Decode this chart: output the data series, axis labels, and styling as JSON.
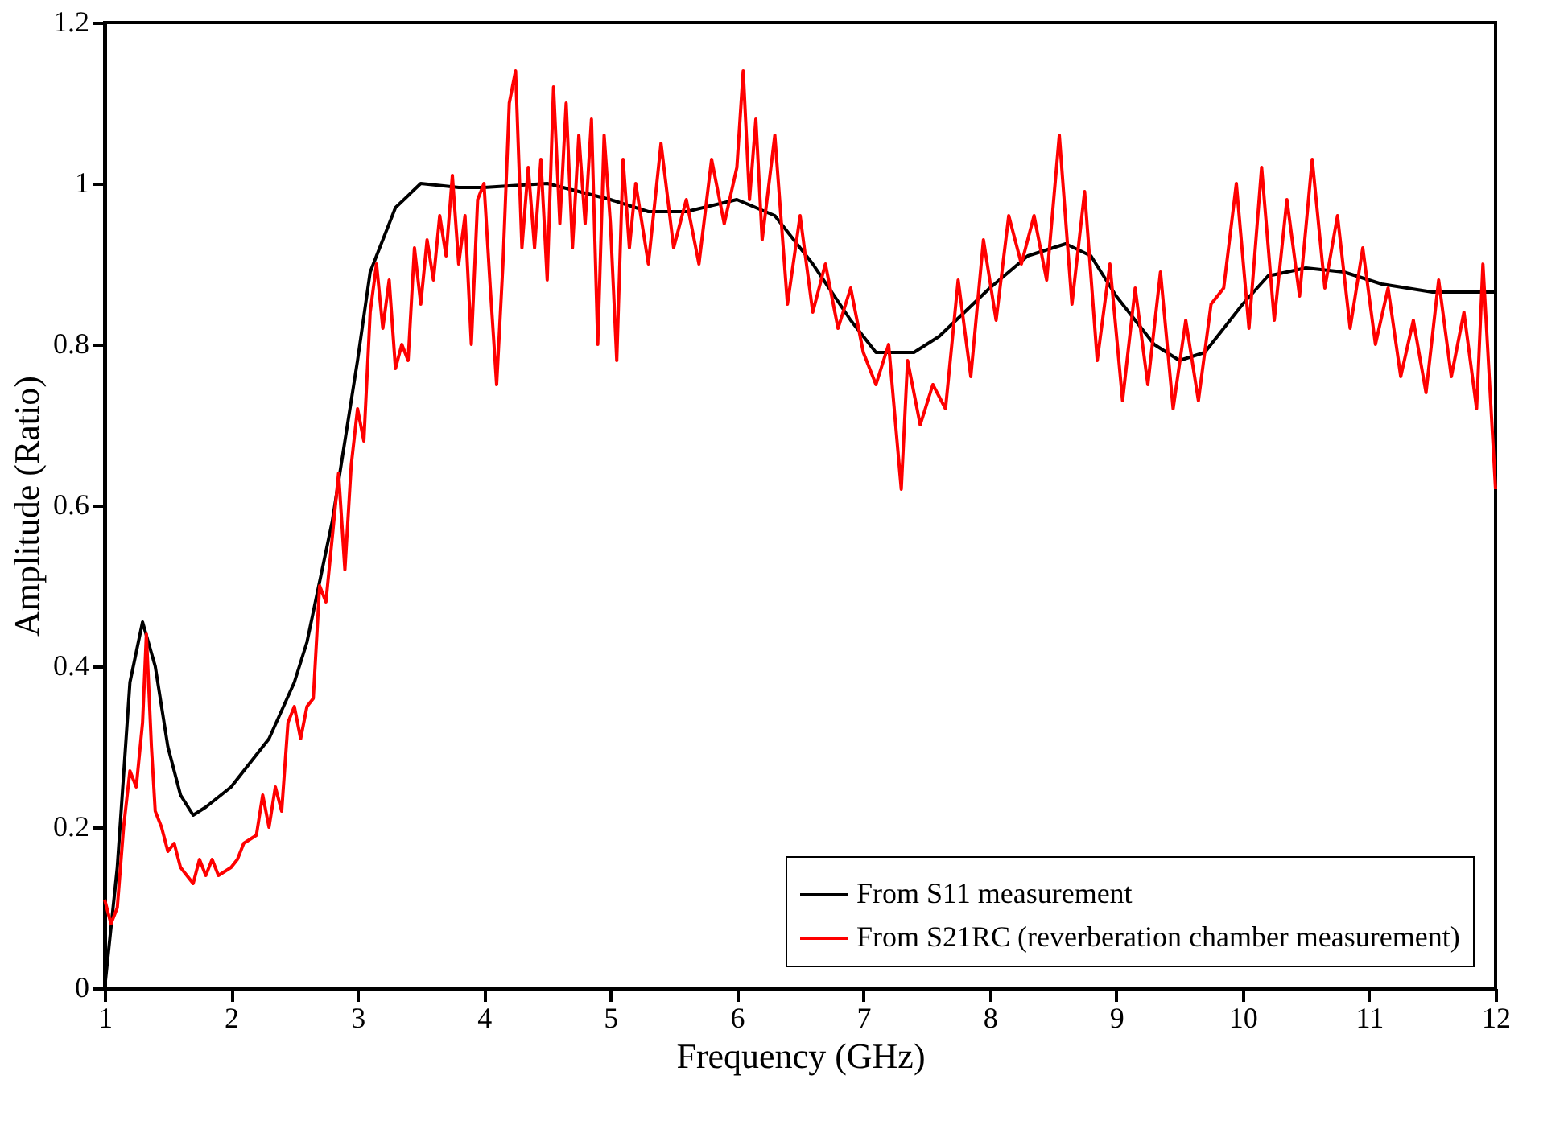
{
  "chart_data": {
    "type": "line",
    "xlabel": "Frequency (GHz)",
    "ylabel": "Amplitude (Ratio)",
    "xlim": [
      1,
      12
    ],
    "xticks": [
      1,
      2,
      3,
      4,
      5,
      6,
      7,
      8,
      9,
      10,
      11,
      12
    ],
    "ylim": [
      0,
      1.2
    ],
    "yticks": [
      0,
      0.2,
      0.4,
      0.6,
      0.8,
      1,
      1.2
    ],
    "grid": false,
    "legend": "bottom right",
    "marker": "none",
    "line_style": "solid",
    "series": [
      {
        "name": "From S11 measurement",
        "color": "#000000",
        "x": [
          1,
          1.1,
          1.2,
          1.3,
          1.4,
          1.5,
          1.6,
          1.7,
          1.8,
          2.0,
          2.2,
          2.3,
          2.5,
          2.6,
          2.8,
          3.0,
          3.1,
          3.3,
          3.5,
          3.8,
          4.0,
          4.5,
          5.0,
          5.3,
          5.6,
          6.0,
          6.3,
          6.6,
          6.9,
          7.1,
          7.4,
          7.6,
          8.0,
          8.3,
          8.6,
          8.8,
          9.0,
          9.3,
          9.5,
          9.7,
          10.0,
          10.2,
          10.5,
          10.8,
          11.1,
          11.5,
          12
        ],
        "values": [
          0,
          0.15,
          0.38,
          0.455,
          0.4,
          0.3,
          0.24,
          0.215,
          0.225,
          0.25,
          0.29,
          0.31,
          0.38,
          0.43,
          0.58,
          0.78,
          0.89,
          0.97,
          1.0,
          0.995,
          0.995,
          1.0,
          0.98,
          0.965,
          0.965,
          0.98,
          0.96,
          0.9,
          0.83,
          0.79,
          0.79,
          0.81,
          0.87,
          0.91,
          0.925,
          0.91,
          0.86,
          0.8,
          0.78,
          0.79,
          0.85,
          0.885,
          0.895,
          0.89,
          0.875,
          0.865,
          0.865
        ]
      },
      {
        "name": "From S21RC (reverberation chamber measurement)",
        "color": "#ff0000",
        "x": [
          1.0,
          1.05,
          1.1,
          1.15,
          1.2,
          1.25,
          1.3,
          1.33,
          1.37,
          1.4,
          1.45,
          1.5,
          1.55,
          1.6,
          1.65,
          1.7,
          1.75,
          1.8,
          1.85,
          1.9,
          2.0,
          2.05,
          2.1,
          2.2,
          2.25,
          2.3,
          2.35,
          2.4,
          2.45,
          2.5,
          2.55,
          2.6,
          2.65,
          2.7,
          2.75,
          2.8,
          2.85,
          2.9,
          2.95,
          3.0,
          3.05,
          3.1,
          3.15,
          3.2,
          3.25,
          3.3,
          3.35,
          3.4,
          3.45,
          3.5,
          3.55,
          3.6,
          3.65,
          3.7,
          3.75,
          3.8,
          3.85,
          3.9,
          3.95,
          4.0,
          4.05,
          4.1,
          4.15,
          4.2,
          4.25,
          4.3,
          4.35,
          4.4,
          4.45,
          4.5,
          4.55,
          4.6,
          4.65,
          4.7,
          4.75,
          4.8,
          4.85,
          4.9,
          4.95,
          5.0,
          5.05,
          5.1,
          5.15,
          5.2,
          5.3,
          5.4,
          5.5,
          5.6,
          5.7,
          5.8,
          5.9,
          6.0,
          6.05,
          6.1,
          6.15,
          6.2,
          6.3,
          6.4,
          6.5,
          6.6,
          6.7,
          6.8,
          6.9,
          7.0,
          7.1,
          7.2,
          7.3,
          7.35,
          7.45,
          7.55,
          7.65,
          7.75,
          7.85,
          7.95,
          8.05,
          8.15,
          8.25,
          8.35,
          8.45,
          8.55,
          8.65,
          8.75,
          8.85,
          8.95,
          9.05,
          9.15,
          9.25,
          9.35,
          9.45,
          9.55,
          9.65,
          9.75,
          9.85,
          9.95,
          10.05,
          10.15,
          10.25,
          10.35,
          10.45,
          10.55,
          10.65,
          10.75,
          10.85,
          10.95,
          11.05,
          11.15,
          11.25,
          11.35,
          11.45,
          11.55,
          11.65,
          11.75,
          11.85,
          11.9,
          11.95,
          12.0
        ],
        "values": [
          0.11,
          0.08,
          0.1,
          0.2,
          0.27,
          0.25,
          0.33,
          0.44,
          0.3,
          0.22,
          0.2,
          0.17,
          0.18,
          0.15,
          0.14,
          0.13,
          0.16,
          0.14,
          0.16,
          0.14,
          0.15,
          0.16,
          0.18,
          0.19,
          0.24,
          0.2,
          0.25,
          0.22,
          0.33,
          0.35,
          0.31,
          0.35,
          0.36,
          0.5,
          0.48,
          0.56,
          0.64,
          0.52,
          0.65,
          0.72,
          0.68,
          0.84,
          0.9,
          0.82,
          0.88,
          0.77,
          0.8,
          0.78,
          0.92,
          0.85,
          0.93,
          0.88,
          0.96,
          0.91,
          1.01,
          0.9,
          0.96,
          0.8,
          0.98,
          1.0,
          0.87,
          0.75,
          0.9,
          1.1,
          1.14,
          0.92,
          1.02,
          0.92,
          1.03,
          0.88,
          1.12,
          0.95,
          1.1,
          0.92,
          1.06,
          0.95,
          1.08,
          0.8,
          1.06,
          0.95,
          0.78,
          1.03,
          0.92,
          1.0,
          0.9,
          1.05,
          0.92,
          0.98,
          0.9,
          1.03,
          0.95,
          1.02,
          1.14,
          0.98,
          1.08,
          0.93,
          1.06,
          0.85,
          0.96,
          0.84,
          0.9,
          0.82,
          0.87,
          0.79,
          0.75,
          0.8,
          0.62,
          0.78,
          0.7,
          0.75,
          0.72,
          0.88,
          0.76,
          0.93,
          0.83,
          0.96,
          0.9,
          0.96,
          0.88,
          1.06,
          0.85,
          0.99,
          0.78,
          0.9,
          0.73,
          0.87,
          0.75,
          0.89,
          0.72,
          0.83,
          0.73,
          0.85,
          0.87,
          1.0,
          0.82,
          1.02,
          0.83,
          0.98,
          0.86,
          1.03,
          0.87,
          0.96,
          0.82,
          0.92,
          0.8,
          0.87,
          0.76,
          0.83,
          0.74,
          0.88,
          0.76,
          0.84,
          0.72,
          0.9,
          0.76,
          0.62
        ]
      }
    ]
  }
}
